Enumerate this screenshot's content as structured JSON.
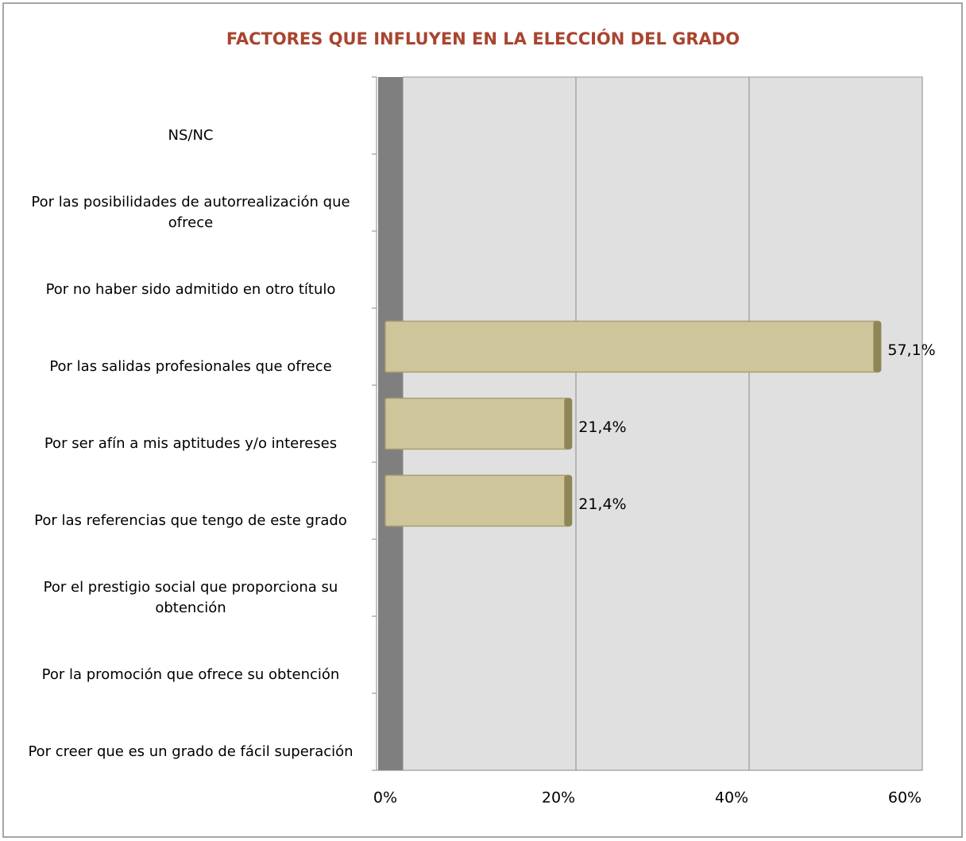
{
  "chart_data": {
    "type": "barh",
    "title": "FACTORES QUE INFLUYEN EN LA ELECCIÓN DEL GRADO",
    "categories": [
      "NS/NC",
      "Por las posibilidades de autorrealización que ofrece",
      "Por no haber sido admitido en otro título",
      "Por las salidas profesionales que ofrece",
      "Por ser afín a mis aptitudes y/o intereses",
      "Por las referencias que tengo de este grado",
      "Por el prestigio social que proporciona su obtención",
      "Por la promoción que ofrece su obtención",
      "Por creer que es un grado de fácil superación"
    ],
    "values": [
      0,
      0,
      0,
      57.1,
      21.4,
      21.4,
      0,
      0,
      0
    ],
    "value_labels": [
      null,
      null,
      null,
      "57,1%",
      "21,4%",
      "21,4%",
      null,
      null,
      null
    ],
    "color": "#cfc59b",
    "xlim": [
      0,
      60
    ],
    "xticks": [
      {
        "value": 0,
        "label": "0%"
      },
      {
        "value": 20,
        "label": "20%"
      },
      {
        "value": 40,
        "label": "40%"
      },
      {
        "value": 60,
        "label": "60%"
      }
    ],
    "grid": true
  }
}
